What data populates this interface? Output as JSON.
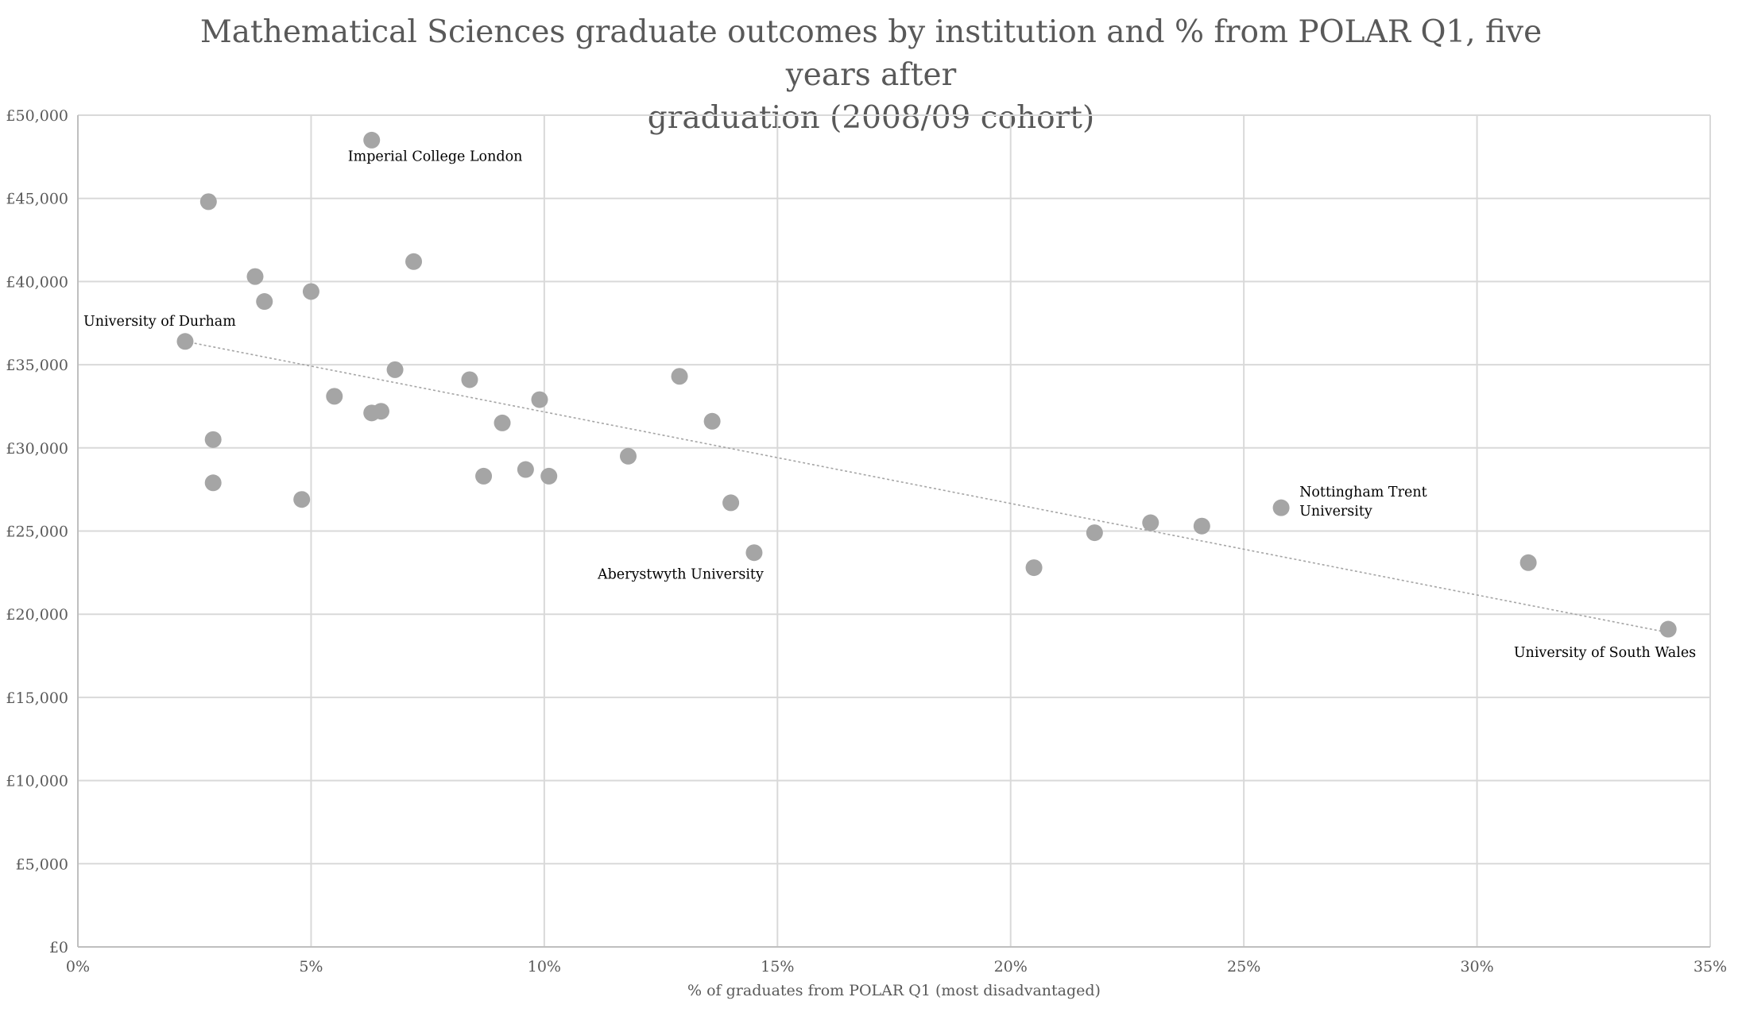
{
  "chart_data": {
    "type": "scatter",
    "title": "Mathematical Sciences graduate outcomes by institution and % from POLAR Q1, five years after graduation (2008/09 cohort)",
    "title_lines": [
      "Mathematical Sciences graduate outcomes by institution and % from POLAR Q1, five years after",
      "graduation (2008/09 cohort)"
    ],
    "xlabel": "% of graduates from POLAR Q1 (most disadvantaged)",
    "ylabel": "",
    "xlim": [
      0,
      35
    ],
    "ylim": [
      0,
      50000
    ],
    "x_ticks": [
      0,
      5,
      10,
      15,
      20,
      25,
      30,
      35
    ],
    "x_tick_labels": [
      "0%",
      "5%",
      "10%",
      "15%",
      "20%",
      "25%",
      "30%",
      "35%"
    ],
    "y_ticks": [
      0,
      5000,
      10000,
      15000,
      20000,
      25000,
      30000,
      35000,
      40000,
      45000,
      50000
    ],
    "y_tick_labels": [
      "£0",
      "£5,000",
      "£10,000",
      "£15,000",
      "£20,000",
      "£25,000",
      "£30,000",
      "£35,000",
      "£40,000",
      "£45,000",
      "£50,000"
    ],
    "grid": true,
    "trendline": {
      "type": "linear",
      "x": [
        2.3,
        34.1
      ],
      "y": [
        36400,
        18900
      ]
    },
    "points": [
      {
        "x": 2.3,
        "y": 36400,
        "label": "University of Durham"
      },
      {
        "x": 2.8,
        "y": 44800
      },
      {
        "x": 2.9,
        "y": 30500
      },
      {
        "x": 2.9,
        "y": 27900
      },
      {
        "x": 3.8,
        "y": 40300
      },
      {
        "x": 4.0,
        "y": 38800
      },
      {
        "x": 4.8,
        "y": 26900
      },
      {
        "x": 5.0,
        "y": 39400
      },
      {
        "x": 5.5,
        "y": 33100
      },
      {
        "x": 6.3,
        "y": 48500,
        "label": "Imperial College London"
      },
      {
        "x": 6.3,
        "y": 32100
      },
      {
        "x": 6.5,
        "y": 32200
      },
      {
        "x": 6.8,
        "y": 34700
      },
      {
        "x": 7.2,
        "y": 41200
      },
      {
        "x": 8.4,
        "y": 34100
      },
      {
        "x": 8.7,
        "y": 28300
      },
      {
        "x": 9.1,
        "y": 31500
      },
      {
        "x": 9.6,
        "y": 28700
      },
      {
        "x": 9.9,
        "y": 32900
      },
      {
        "x": 10.1,
        "y": 28300
      },
      {
        "x": 11.8,
        "y": 29500
      },
      {
        "x": 12.9,
        "y": 34300
      },
      {
        "x": 13.6,
        "y": 31600
      },
      {
        "x": 14.0,
        "y": 26700
      },
      {
        "x": 14.5,
        "y": 23700,
        "label": "Aberystwyth University"
      },
      {
        "x": 20.5,
        "y": 22800
      },
      {
        "x": 21.8,
        "y": 24900
      },
      {
        "x": 23.0,
        "y": 25500
      },
      {
        "x": 24.1,
        "y": 25300
      },
      {
        "x": 25.8,
        "y": 26400,
        "label": "Nottingham Trent University",
        "label_lines": [
          "Nottingham Trent",
          "University"
        ]
      },
      {
        "x": 31.1,
        "y": 23100
      },
      {
        "x": 34.1,
        "y": 19100,
        "label": "University of South Wales"
      }
    ]
  }
}
